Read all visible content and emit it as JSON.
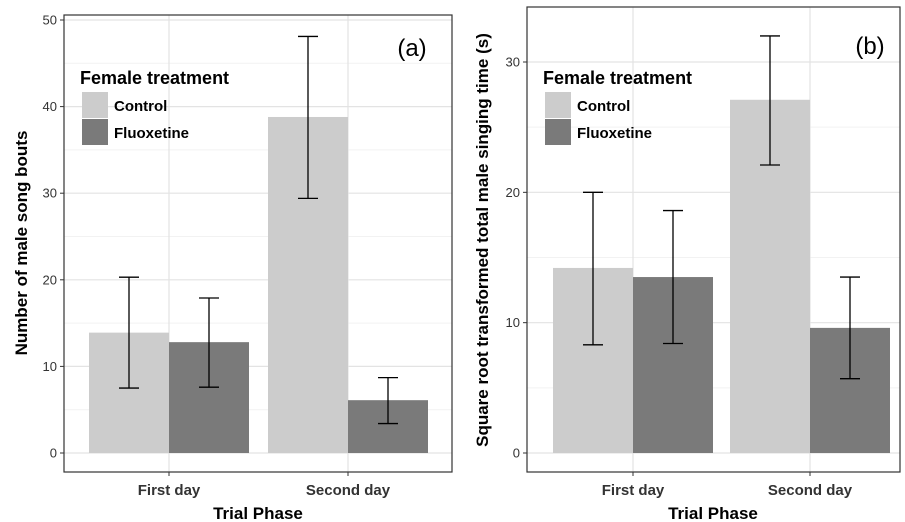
{
  "legend": {
    "title": "Female treatment",
    "entries": [
      {
        "label": "Control",
        "color": "#cccccc"
      },
      {
        "label": "Fluoxetine",
        "color": "#7a7a7a"
      }
    ]
  },
  "chart_data": [
    {
      "type": "bar",
      "panel_label": "(a)",
      "xlabel": "Trial Phase",
      "ylabel": "Number of male song bouts",
      "categories": [
        "First day",
        "Second day"
      ],
      "ylim": [
        0,
        50
      ],
      "yticks": [
        0,
        10,
        20,
        30,
        40,
        50
      ],
      "grid": true,
      "legend_position": "top-left",
      "series": [
        {
          "name": "Control",
          "color": "#cccccc",
          "values": [
            13.9,
            38.8
          ],
          "error_low": [
            7.5,
            29.4
          ],
          "error_high": [
            20.3,
            48.1
          ]
        },
        {
          "name": "Fluoxetine",
          "color": "#7a7a7a",
          "values": [
            12.8,
            6.1
          ],
          "error_low": [
            7.6,
            3.4
          ],
          "error_high": [
            17.9,
            8.7
          ]
        }
      ]
    },
    {
      "type": "bar",
      "panel_label": "(b)",
      "xlabel": "Trial Phase",
      "ylabel": "Square root transformed total male singing time (s)",
      "categories": [
        "First day",
        "Second day"
      ],
      "ylim": [
        0,
        33
      ],
      "yticks": [
        0,
        10,
        20,
        30
      ],
      "grid": true,
      "legend_position": "top-left",
      "series": [
        {
          "name": "Control",
          "color": "#cccccc",
          "values": [
            14.2,
            27.1
          ],
          "error_low": [
            8.3,
            22.1
          ],
          "error_high": [
            20.0,
            32.0
          ]
        },
        {
          "name": "Fluoxetine",
          "color": "#7a7a7a",
          "values": [
            13.5,
            9.6
          ],
          "error_low": [
            8.4,
            5.7
          ],
          "error_high": [
            18.6,
            13.5
          ]
        }
      ]
    }
  ]
}
